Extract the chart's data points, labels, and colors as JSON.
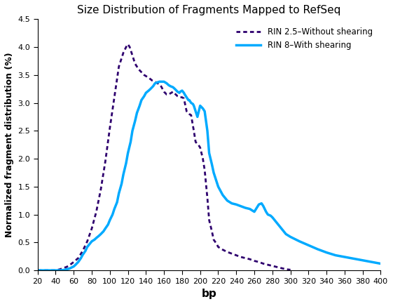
{
  "title": "Size Distribution of Fragments Mapped to RefSeq",
  "xlabel": "bp",
  "ylabel": "Normalized fragment distribution (%)",
  "xlim": [
    20,
    400
  ],
  "ylim": [
    0,
    4.5
  ],
  "xticks": [
    20,
    40,
    60,
    80,
    100,
    120,
    140,
    160,
    180,
    200,
    220,
    240,
    260,
    280,
    300,
    320,
    340,
    360,
    380,
    400
  ],
  "yticks": [
    0.0,
    0.5,
    1.0,
    1.5,
    2.0,
    2.5,
    3.0,
    3.5,
    4.0,
    4.5
  ],
  "legend": [
    {
      "label": "RIN 2.5–Without shearing",
      "color": "#2e006e",
      "linewidth": 2.0
    },
    {
      "label": "RIN 8–With shearing",
      "color": "#00aaff",
      "linewidth": 2.5
    }
  ],
  "rin25_x": [
    20,
    40,
    45,
    48,
    52,
    56,
    60,
    65,
    70,
    75,
    80,
    85,
    90,
    95,
    100,
    105,
    110,
    115,
    118,
    120,
    122,
    125,
    128,
    132,
    135,
    138,
    140,
    143,
    147,
    150,
    153,
    156,
    160,
    163,
    165,
    168,
    170,
    173,
    175,
    178,
    180,
    182,
    185,
    188,
    190,
    193,
    195,
    198,
    200,
    203,
    205,
    208,
    210,
    213,
    215,
    218,
    220,
    225,
    230,
    235,
    240,
    245,
    250,
    255,
    260,
    265,
    270,
    275,
    280,
    285,
    290,
    295,
    300
  ],
  "rin25_y": [
    0.0,
    0.0,
    0.02,
    0.04,
    0.06,
    0.1,
    0.15,
    0.22,
    0.35,
    0.52,
    0.75,
    1.05,
    1.45,
    1.95,
    2.55,
    3.1,
    3.65,
    3.9,
    4.0,
    4.05,
    4.0,
    3.85,
    3.7,
    3.6,
    3.55,
    3.5,
    3.48,
    3.45,
    3.4,
    3.38,
    3.35,
    3.32,
    3.2,
    3.15,
    3.15,
    3.18,
    3.2,
    3.15,
    3.12,
    3.1,
    3.1,
    3.08,
    2.85,
    2.8,
    2.78,
    2.5,
    2.3,
    2.25,
    2.2,
    2.0,
    1.8,
    1.3,
    0.9,
    0.7,
    0.55,
    0.48,
    0.42,
    0.37,
    0.33,
    0.3,
    0.27,
    0.24,
    0.22,
    0.2,
    0.17,
    0.15,
    0.12,
    0.1,
    0.08,
    0.06,
    0.04,
    0.02,
    0.01
  ],
  "rin8_x": [
    20,
    40,
    45,
    50,
    55,
    60,
    62,
    65,
    68,
    70,
    73,
    75,
    78,
    80,
    83,
    85,
    88,
    90,
    93,
    95,
    98,
    100,
    103,
    105,
    108,
    110,
    113,
    115,
    118,
    120,
    123,
    125,
    128,
    130,
    133,
    135,
    138,
    140,
    143,
    145,
    148,
    150,
    153,
    155,
    158,
    160,
    163,
    165,
    167,
    170,
    172,
    175,
    177,
    178,
    180,
    182,
    183,
    185,
    187,
    188,
    190,
    192,
    193,
    195,
    197,
    200,
    203,
    205,
    208,
    210,
    213,
    215,
    218,
    220,
    225,
    230,
    235,
    240,
    245,
    250,
    255,
    260,
    265,
    268,
    270,
    273,
    275,
    278,
    280,
    285,
    290,
    295,
    300,
    310,
    320,
    330,
    340,
    350,
    360,
    370,
    380,
    390,
    400
  ],
  "rin8_y": [
    0.0,
    0.0,
    0.0,
    0.01,
    0.03,
    0.07,
    0.1,
    0.15,
    0.22,
    0.28,
    0.35,
    0.42,
    0.48,
    0.52,
    0.55,
    0.58,
    0.62,
    0.65,
    0.7,
    0.75,
    0.82,
    0.9,
    1.0,
    1.1,
    1.22,
    1.38,
    1.55,
    1.72,
    1.92,
    2.1,
    2.3,
    2.5,
    2.68,
    2.82,
    2.95,
    3.05,
    3.12,
    3.18,
    3.22,
    3.25,
    3.3,
    3.35,
    3.37,
    3.38,
    3.38,
    3.38,
    3.35,
    3.32,
    3.3,
    3.28,
    3.25,
    3.2,
    3.18,
    3.2,
    3.22,
    3.18,
    3.15,
    3.1,
    3.05,
    3.05,
    3.0,
    2.98,
    2.95,
    2.85,
    2.75,
    2.95,
    2.9,
    2.85,
    2.5,
    2.1,
    1.9,
    1.75,
    1.6,
    1.5,
    1.35,
    1.25,
    1.2,
    1.18,
    1.15,
    1.12,
    1.1,
    1.05,
    1.18,
    1.2,
    1.15,
    1.05,
    1.0,
    0.98,
    0.95,
    0.85,
    0.75,
    0.65,
    0.6,
    0.52,
    0.45,
    0.38,
    0.32,
    0.27,
    0.24,
    0.21,
    0.18,
    0.15,
    0.12
  ]
}
